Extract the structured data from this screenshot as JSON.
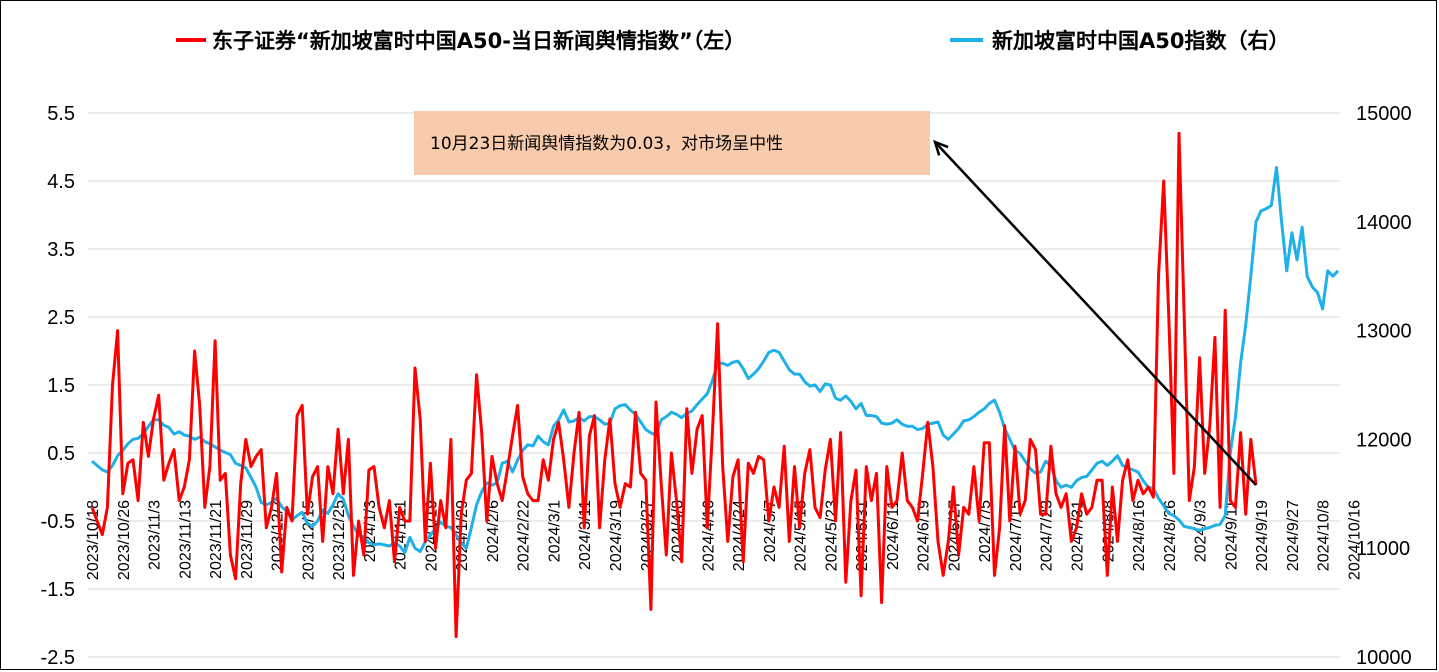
{
  "chart_data": {
    "type": "line",
    "title": "",
    "legend": {
      "placement": "top",
      "items": [
        {
          "label": "东子证券“新加坡富时中国A50-当日新闻舆情指数”（左）",
          "color": "#ff0000"
        },
        {
          "label": "新加坡富时中国A50指数（右）",
          "color": "#1fb0e8"
        }
      ]
    },
    "y_left": {
      "ylim": [
        -2.5,
        5.5
      ],
      "ticks": [
        -2.5,
        -1.5,
        -0.5,
        0.5,
        1.5,
        2.5,
        3.5,
        4.5,
        5.5
      ],
      "tick_labels": [
        "-2.5",
        "-1.5",
        "-0.5",
        "0.5",
        "1.5",
        "2.5",
        "3.5",
        "4.5",
        "5.5"
      ]
    },
    "y_right": {
      "ylim": [
        10000,
        15000
      ],
      "ticks": [
        10000,
        11000,
        12000,
        13000,
        14000,
        15000
      ],
      "tick_labels": [
        "10000",
        "11000",
        "12000",
        "13000",
        "14000",
        "15000"
      ]
    },
    "x_tick_labels": [
      "2023/10/18",
      "2023/10/26",
      "2023/11/3",
      "2023/11/13",
      "2023/11/21",
      "2023/11/29",
      "2023/12/7",
      "2023/12/15",
      "2023/12/25",
      "2024/1/3",
      "2024/1/11",
      "2024/1/19",
      "2024/1/29",
      "2024/2/6",
      "2024/2/22",
      "2024/3/1",
      "2024/3/11",
      "2024/3/19",
      "2024/3/27",
      "2024/4/8",
      "2024/4/16",
      "2024/4/24",
      "2024/5/7",
      "2024/5/15",
      "2024/5/23",
      "2024/5/31",
      "2024/6/11",
      "2024/6/19",
      "2024/6/27",
      "2024/7/5",
      "2024/7/15",
      "2024/7/23",
      "2024/7/31",
      "2024/8/8",
      "2024/8/16",
      "2024/8/26",
      "2024/9/3",
      "2024/9/11",
      "2024/9/19",
      "2024/9/27",
      "2024/10/8",
      "2024/10/16"
    ],
    "points_per_tick": 6,
    "series": [
      {
        "name": "东子证券“新加坡富时中国A50-当日新闻舆情指数”（左）",
        "axis": "left",
        "color": "#ff0000",
        "values": [
          -0.3,
          -0.5,
          -0.7,
          -0.3,
          1.5,
          2.3,
          -0.1,
          0.35,
          0.4,
          -0.2,
          0.95,
          0.45,
          1.0,
          1.35,
          0.1,
          0.35,
          0.55,
          -0.2,
          0.0,
          0.4,
          2.0,
          1.2,
          -0.3,
          0.3,
          2.15,
          0.1,
          0.2,
          -1.0,
          -1.35,
          0.05,
          0.7,
          0.3,
          0.45,
          0.55,
          -0.6,
          -0.3,
          0.2,
          -1.25,
          -0.3,
          -0.5,
          1.05,
          1.2,
          -0.4,
          0.15,
          0.3,
          -0.8,
          0.3,
          -0.1,
          0.85,
          -0.1,
          0.7,
          -1.3,
          -0.5,
          -1.0,
          0.25,
          0.3,
          -0.3,
          -0.6,
          -0.2,
          -1.1,
          -0.3,
          -0.5,
          -0.5,
          1.75,
          1.0,
          -0.8,
          0.35,
          -0.9,
          -0.2,
          -0.6,
          0.7,
          -2.2,
          -0.4,
          0.1,
          0.2,
          1.65,
          0.8,
          -0.5,
          0.45,
          0.05,
          -0.2,
          0.25,
          0.75,
          1.2,
          0.15,
          -0.1,
          -0.2,
          -0.2,
          0.4,
          0.1,
          0.7,
          0.95,
          0.4,
          -0.3,
          0.5,
          1.1,
          -0.6,
          0.75,
          1.05,
          -0.6,
          0.4,
          1.0,
          0.05,
          -0.3,
          0.05,
          0.0,
          1.1,
          0.2,
          0.1,
          -1.8,
          1.25,
          0.05,
          -1.0,
          0.5,
          -0.2,
          -1.1,
          1.15,
          0.2,
          0.85,
          1.05,
          -0.6,
          0.8,
          2.4,
          0.3,
          -0.8,
          0.15,
          0.4,
          -1.1,
          0.35,
          0.2,
          0.45,
          0.4,
          -0.5,
          0.0,
          -0.3,
          0.6,
          -0.8,
          0.3,
          -0.6,
          0.2,
          0.55,
          -0.3,
          -0.45,
          0.25,
          0.7,
          -0.5,
          0.8,
          -1.4,
          -0.2,
          0.25,
          -1.6,
          0.3,
          -0.2,
          0.2,
          -1.7,
          0.3,
          -0.3,
          -0.2,
          0.5,
          -0.2,
          -0.3,
          -0.5,
          0.2,
          0.95,
          0.3,
          -0.8,
          -1.3,
          -0.8,
          0.0,
          -1.0,
          -0.3,
          -0.4,
          0.3,
          -0.5,
          0.65,
          0.65,
          -1.3,
          -0.6,
          0.9,
          -0.5,
          0.6,
          -0.4,
          -0.2,
          0.7,
          0.55,
          -0.4,
          -0.4,
          0.6,
          -0.1,
          -0.3,
          -0.1,
          -0.8,
          -0.6,
          -0.1,
          -0.4,
          -0.3,
          0.1,
          0.1,
          -1.3,
          0.0,
          -0.8,
          0.1,
          0.4,
          -0.2,
          0.1,
          -0.1,
          0.0,
          -0.15,
          3.1,
          4.5,
          2.5,
          0.2,
          5.2,
          2.5,
          -0.2,
          0.3,
          1.9,
          0.2,
          0.9,
          2.2,
          -0.3,
          2.6,
          -0.2,
          -0.3,
          0.8,
          -0.4,
          0.7,
          0.03
        ]
      },
      {
        "name": "新加坡富时中国A50指数（右）",
        "axis": "right",
        "color": "#1fb0e8",
        "values": [
          11800,
          11760,
          11720,
          11700,
          11760,
          11850,
          11900,
          11960,
          12000,
          12010,
          12050,
          12120,
          12180,
          12180,
          12130,
          12110,
          12050,
          12070,
          12040,
          12030,
          12000,
          12020,
          11980,
          11960,
          11930,
          11900,
          11880,
          11860,
          11780,
          11760,
          11740,
          11650,
          11560,
          11420,
          11400,
          11420,
          11460,
          11380,
          11340,
          11260,
          11300,
          11330,
          11230,
          11200,
          11250,
          11350,
          11320,
          11400,
          11500,
          11450,
          11300,
          11200,
          11120,
          11100,
          11050,
          11030,
          11040,
          11030,
          11020,
          11050,
          11020,
          10960,
          11100,
          11000,
          10970,
          11060,
          11120,
          11180,
          11240,
          11200,
          11190,
          11120,
          11050,
          11000,
          11190,
          11400,
          11520,
          11600,
          11580,
          11600,
          11780,
          11800,
          11700,
          11810,
          11900,
          11950,
          11940,
          12030,
          11980,
          11950,
          12120,
          12180,
          12270,
          12160,
          12170,
          12200,
          12170,
          12210,
          12210,
          12180,
          12140,
          12150,
          12280,
          12310,
          12320,
          12270,
          12230,
          12160,
          12090,
          12060,
          12040,
          12180,
          12210,
          12250,
          12230,
          12200,
          12240,
          12260,
          12320,
          12370,
          12420,
          12540,
          12700,
          12700,
          12680,
          12710,
          12720,
          12650,
          12560,
          12600,
          12650,
          12720,
          12800,
          12820,
          12800,
          12720,
          12640,
          12600,
          12600,
          12530,
          12490,
          12500,
          12440,
          12510,
          12500,
          12380,
          12360,
          12400,
          12350,
          12280,
          12330,
          12220,
          12220,
          12210,
          12150,
          12140,
          12150,
          12180,
          12140,
          12120,
          12120,
          12090,
          12100,
          12140,
          12150,
          12160,
          12040,
          12000,
          12050,
          12100,
          12170,
          12180,
          12210,
          12250,
          12280,
          12330,
          12360,
          12250,
          12100,
          12000,
          11900,
          11870,
          11800,
          11730,
          11690,
          11700,
          11800,
          11760,
          11620,
          11560,
          11580,
          11560,
          11620,
          11650,
          11660,
          11720,
          11780,
          11800,
          11760,
          11800,
          11850,
          11760,
          11740,
          11720,
          11700,
          11620,
          11560,
          11550,
          11460,
          11390,
          11320,
          11300,
          11260,
          11200,
          11190,
          11180,
          11160,
          11180,
          11190,
          11210,
          11220,
          11300,
          11880,
          12200,
          12700,
          13050,
          13500,
          14000,
          14100,
          14120,
          14150,
          14500,
          14000,
          13550,
          13900,
          13650,
          13950,
          13500,
          13400,
          13350,
          13200,
          13550,
          13500,
          13550
        ]
      }
    ],
    "annotation": {
      "text": "10月23日新闻舆情指数为0.03，对市场呈中性",
      "box_color": "#f8cbad",
      "target_value": 0.03
    }
  }
}
